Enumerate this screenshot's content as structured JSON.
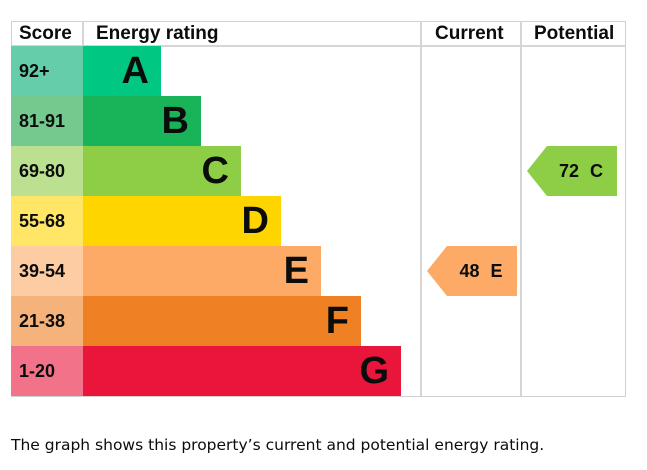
{
  "chart_data": {
    "type": "bar",
    "headers": {
      "score": "Score",
      "rating": "Energy rating",
      "current": "Current",
      "potential": "Potential"
    },
    "bands": [
      {
        "score": "92+",
        "letter": "A",
        "color": "#00c781",
        "score_color": "#66cdaa"
      },
      {
        "score": "81-91",
        "letter": "B",
        "color": "#19b459",
        "score_color": "#75c98f"
      },
      {
        "score": "69-80",
        "letter": "C",
        "color": "#8dce46",
        "score_color": "#bbe090"
      },
      {
        "score": "55-68",
        "letter": "D",
        "color": "#ffd500",
        "score_color": "#ffe666"
      },
      {
        "score": "39-54",
        "letter": "E",
        "color": "#fcaa65",
        "score_color": "#fdcca3"
      },
      {
        "score": "21-38",
        "letter": "F",
        "color": "#ef8023",
        "score_color": "#f5b37b"
      },
      {
        "score": "1-20",
        "letter": "G",
        "color": "#e9153b",
        "score_color": "#f27389"
      }
    ],
    "current": {
      "value": 48,
      "band": "E",
      "label": "48 E"
    },
    "potential": {
      "value": 72,
      "band": "C",
      "label": "72 C"
    }
  },
  "caption": "The graph shows this property’s current and potential energy rating."
}
